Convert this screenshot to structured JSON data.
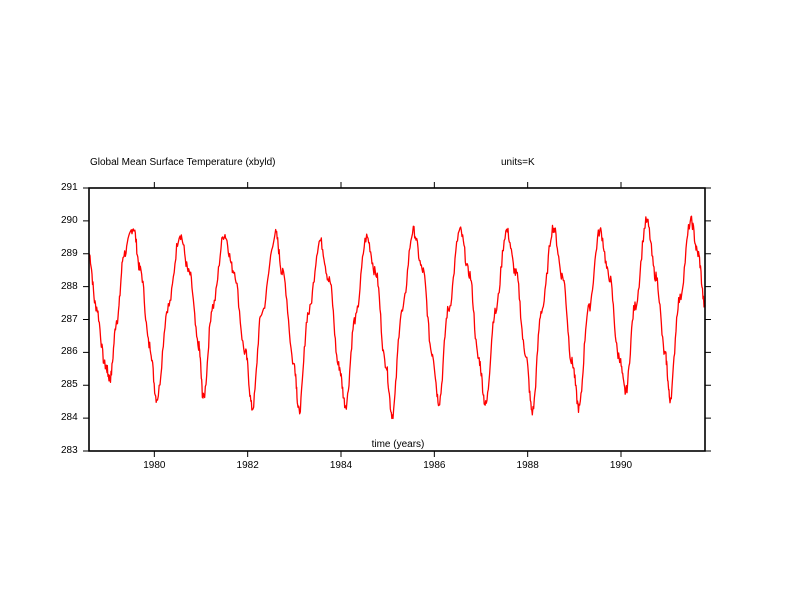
{
  "chart_data": {
    "type": "line",
    "title": "Global Mean Surface Temperature (xbyld)",
    "units_label": "units=K",
    "xlabel": "time (years)",
    "ylabel": "",
    "xlim": [
      1978.6,
      1991.8
    ],
    "ylim": [
      283,
      291
    ],
    "x_ticks": [
      1980,
      1982,
      1984,
      1986,
      1988,
      1990
    ],
    "x_tick_labels": [
      "1980",
      "1982",
      "1984",
      "1986",
      "1988",
      "1990"
    ],
    "y_ticks": [
      283,
      284,
      285,
      286,
      287,
      288,
      289,
      290,
      291
    ],
    "y_tick_labels": [
      "283",
      "284",
      "285",
      "286",
      "287",
      "288",
      "289",
      "290",
      "291"
    ],
    "grid": false,
    "series": [
      {
        "color": "#ff0000",
        "x": [
          1978.6,
          1978.75,
          1978.95,
          1979.05,
          1979.2,
          1979.35,
          1979.55,
          1979.7,
          1979.9,
          1980.05,
          1980.3,
          1980.55,
          1980.75,
          1980.95,
          1981.05,
          1981.25,
          1981.5,
          1981.7,
          1981.95,
          1982.1,
          1982.3,
          1982.6,
          1982.75,
          1983.0,
          1983.1,
          1983.3,
          1983.55,
          1983.75,
          1983.95,
          1984.1,
          1984.3,
          1984.55,
          1984.75,
          1984.95,
          1985.1,
          1985.3,
          1985.55,
          1985.75,
          1985.95,
          1986.1,
          1986.3,
          1986.55,
          1986.75,
          1986.95,
          1987.1,
          1987.3,
          1987.55,
          1987.75,
          1987.95,
          1988.1,
          1988.3,
          1988.55,
          1988.75,
          1988.95,
          1989.1,
          1989.3,
          1989.55,
          1989.75,
          1989.95,
          1990.1,
          1990.3,
          1990.55,
          1990.75,
          1990.95,
          1991.05,
          1991.25,
          1991.5,
          1991.65,
          1991.8
        ],
        "y": [
          289.0,
          287.4,
          285.6,
          285.2,
          287.0,
          289.0,
          289.8,
          288.5,
          286.2,
          284.6,
          287.4,
          289.6,
          288.4,
          286.2,
          284.6,
          287.4,
          289.6,
          288.5,
          286.0,
          284.3,
          287.2,
          289.6,
          288.4,
          285.6,
          284.2,
          287.2,
          289.4,
          288.2,
          285.6,
          284.4,
          287.0,
          289.5,
          288.4,
          285.7,
          284.1,
          287.2,
          289.7,
          288.5,
          286.0,
          284.5,
          287.3,
          289.7,
          288.4,
          285.8,
          284.4,
          287.2,
          289.7,
          288.4,
          286.0,
          284.2,
          287.3,
          289.8,
          288.3,
          285.7,
          284.3,
          287.3,
          289.7,
          288.3,
          285.9,
          284.8,
          287.4,
          290.0,
          288.3,
          285.9,
          284.6,
          287.6,
          290.0,
          289.0,
          287.4
        ]
      }
    ]
  }
}
